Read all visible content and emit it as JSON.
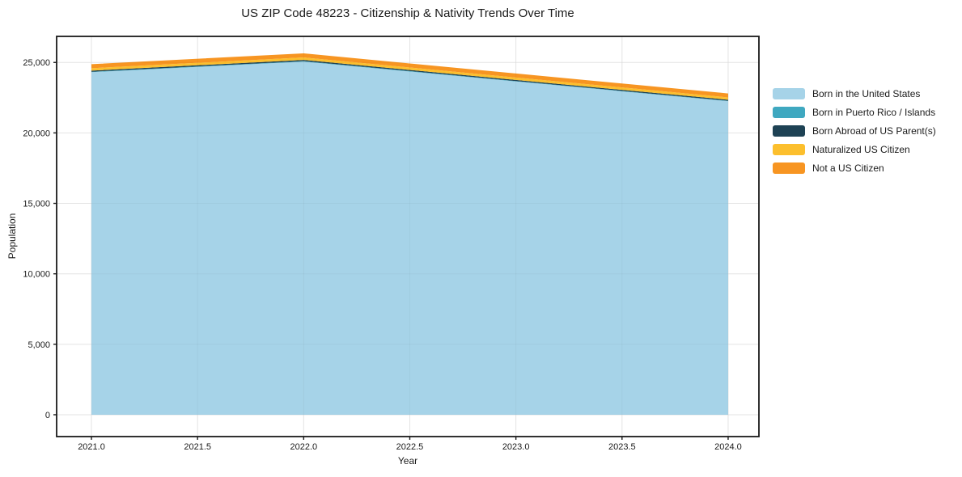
{
  "title": "US ZIP Code 48223 - Citizenship & Nativity Trends Over Time",
  "axes": {
    "xlabel": "Year",
    "ylabel": "Population"
  },
  "colors": {
    "background": "#ffffff",
    "grid": "#ececec",
    "grid_overlay": "rgba(0,0,0,0.035)",
    "spine": "#1a1a1a",
    "tick": "#1a1a1a",
    "text": "#1a1a1a"
  },
  "chart_data": {
    "type": "area",
    "stacked": true,
    "title": "US ZIP Code 48223 - Citizenship & Nativity Trends Over Time",
    "xlabel": "Year",
    "ylabel": "Population",
    "x": [
      2021,
      2022,
      2023,
      2024
    ],
    "series": [
      {
        "name": "Born in the United States",
        "color": "#a6d3e8",
        "values": [
          24310,
          25060,
          23650,
          22250
        ]
      },
      {
        "name": "Born in Puerto Rico / Islands",
        "color": "#3fa8c0",
        "values": [
          30,
          35,
          30,
          30
        ]
      },
      {
        "name": "Born Abroad of US Parent(s)",
        "color": "#1e4254",
        "values": [
          80,
          85,
          80,
          75
        ]
      },
      {
        "name": "Naturalized US Citizen",
        "color": "#fcbf2d",
        "values": [
          170,
          175,
          170,
          165
        ]
      },
      {
        "name": "Not a US Citizen",
        "color": "#f79522",
        "values": [
          290,
          290,
          285,
          280
        ]
      }
    ],
    "totals": [
      24880,
      25645,
      24215,
      22800
    ],
    "x_ticks": [
      "2021.0",
      "2021.5",
      "2022.0",
      "2022.5",
      "2023.0",
      "2023.5",
      "2024.0"
    ],
    "x_tick_values": [
      2021,
      2021.5,
      2022,
      2022.5,
      2023,
      2023.5,
      2024
    ],
    "y_ticks": [
      "0",
      "5,000",
      "10,000",
      "15,000",
      "20,000",
      "25,000"
    ],
    "y_tick_values": [
      0,
      5000,
      10000,
      15000,
      20000,
      25000
    ],
    "xlim": [
      2020.836,
      2024.145
    ],
    "ylim": [
      -1550,
      26850
    ],
    "grid": true,
    "legend_position": "right"
  }
}
